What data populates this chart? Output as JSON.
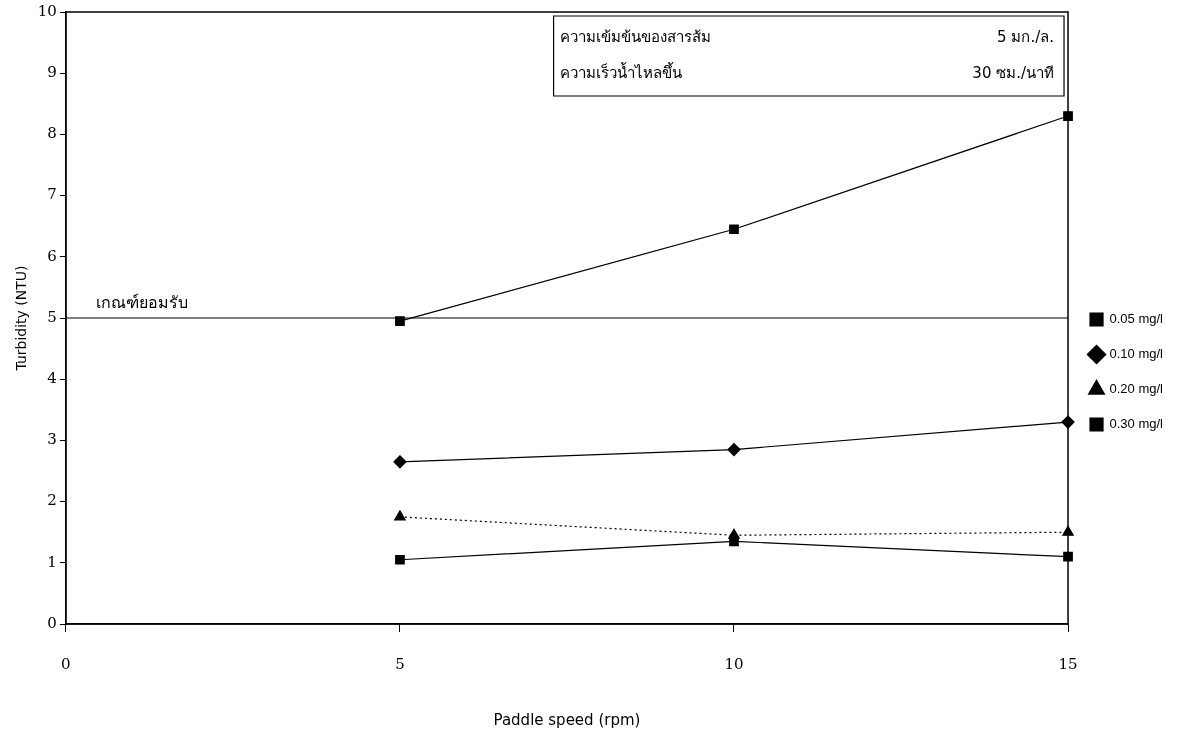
{
  "chart_data": {
    "type": "line",
    "xlabel": "Paddle speed (rpm)",
    "ylabel": "Turbidity (NTU)",
    "x": [
      5,
      10,
      15
    ],
    "series": [
      {
        "name": "0.05 mg/l",
        "color": "#000000",
        "marker": "square",
        "line_style": "solid",
        "values": [
          4.95,
          6.45,
          8.3
        ]
      },
      {
        "name": "0.10 mg/l",
        "color": "#000000",
        "marker": "diamond",
        "line_style": "solid",
        "values": [
          2.65,
          2.85,
          3.3
        ]
      },
      {
        "name": "0.20 mg/l",
        "color": "#000000",
        "marker": "triangle",
        "line_style": "dotted",
        "values": [
          1.75,
          1.45,
          1.5
        ]
      },
      {
        "name": "0.30 mg/l",
        "color": "#000000",
        "marker": "square",
        "line_style": "solid",
        "values": [
          1.05,
          1.35,
          1.1
        ]
      }
    ],
    "xlim": [
      0,
      15
    ],
    "xticks": [
      0,
      5,
      10,
      15
    ],
    "ylim": [
      0,
      10
    ],
    "yticks": [
      0,
      1,
      2,
      3,
      4,
      5,
      6,
      7,
      8,
      9,
      10
    ],
    "ref_lines": [
      {
        "axis": "y",
        "value": 5,
        "label": "เกณฑ์ยอมรับ",
        "color": "#000000"
      }
    ],
    "annotations": [
      "ความเข้มข้นของสารส้ม",
      "5 มก./ล.",
      "ความเร็วน้ำไหลขึ้น",
      "30 ซม./นาที"
    ],
    "grid": false,
    "legend": "right"
  }
}
